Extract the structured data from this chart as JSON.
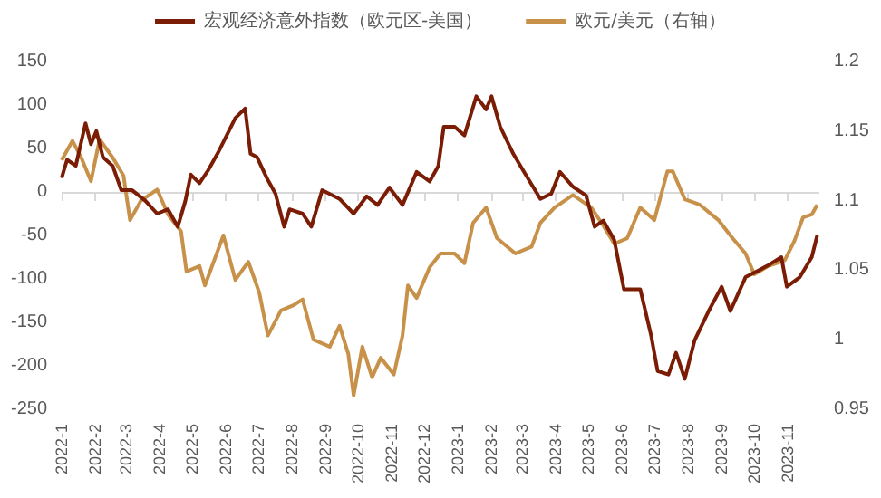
{
  "chart_data": {
    "type": "line",
    "legend": "top",
    "grid": false,
    "marker": "none",
    "line_style": "solid",
    "xlim": [
      "2022-01-01",
      "2023-11-30"
    ],
    "xticks": [
      {
        "value": "2022-01",
        "label": "2022-1"
      },
      {
        "value": "2022-02",
        "label": "2022-2"
      },
      {
        "value": "2022-03",
        "label": "2022-3"
      },
      {
        "value": "2022-04",
        "label": "2022-4"
      },
      {
        "value": "2022-05",
        "label": "2022-5"
      },
      {
        "value": "2022-06",
        "label": "2022-6"
      },
      {
        "value": "2022-07",
        "label": "2022-7"
      },
      {
        "value": "2022-08",
        "label": "2022-8"
      },
      {
        "value": "2022-09",
        "label": "2022-9"
      },
      {
        "value": "2022-10",
        "label": "2022-10"
      },
      {
        "value": "2022-11",
        "label": "2022-11"
      },
      {
        "value": "2022-12",
        "label": "2022-12"
      },
      {
        "value": "2023-01",
        "label": "2023-1"
      },
      {
        "value": "2023-02",
        "label": "2023-2"
      },
      {
        "value": "2023-03",
        "label": "2023-3"
      },
      {
        "value": "2023-04",
        "label": "2023-4"
      },
      {
        "value": "2023-05",
        "label": "2023-5"
      },
      {
        "value": "2023-06",
        "label": "2023-6"
      },
      {
        "value": "2023-07",
        "label": "2023-7"
      },
      {
        "value": "2023-08",
        "label": "2023-8"
      },
      {
        "value": "2023-09",
        "label": "2023-9"
      },
      {
        "value": "2023-10",
        "label": "2023-10"
      },
      {
        "value": "2023-11",
        "label": "2023-11"
      }
    ],
    "ylim": [
      -250,
      150
    ],
    "yticks": [
      -250,
      -200,
      -150,
      -100,
      -50,
      0,
      50,
      100,
      150
    ],
    "ref_lines": [
      {
        "axis": "y",
        "value": 0,
        "color": "#d9d9d9"
      }
    ],
    "y2lim": [
      0.95,
      1.2
    ],
    "y2ticks": [
      0.95,
      1,
      1.05,
      1.1,
      1.15,
      1.2
    ],
    "series": [
      {
        "name": "宏观经济意外指数（欧元区-美国）",
        "color": "#7b1c05",
        "x": [
          "2022-01-01",
          "2022-01-06",
          "2022-01-14",
          "2022-01-23",
          "2022-01-28",
          "2022-02-02",
          "2022-02-08",
          "2022-02-17",
          "2022-02-25",
          "2022-03-07",
          "2022-03-19",
          "2022-03-30",
          "2022-04-09",
          "2022-04-18",
          "2022-04-25",
          "2022-04-30",
          "2022-05-08",
          "2022-05-16",
          "2022-05-25",
          "2022-06-02",
          "2022-06-10",
          "2022-06-19",
          "2022-06-24",
          "2022-06-30",
          "2022-07-09",
          "2022-07-17",
          "2022-07-25",
          "2022-07-30",
          "2022-08-11",
          "2022-08-19",
          "2022-08-29",
          "2022-09-14",
          "2022-09-27",
          "2022-10-09",
          "2022-10-19",
          "2022-10-30",
          "2022-11-11",
          "2022-11-24",
          "2022-12-06",
          "2022-12-14",
          "2022-12-19",
          "2022-12-29",
          "2023-01-07",
          "2023-01-18",
          "2023-01-27",
          "2023-02-01",
          "2023-02-09",
          "2023-02-21",
          "2023-03-03",
          "2023-03-18",
          "2023-03-28",
          "2023-04-05",
          "2023-04-17",
          "2023-04-29",
          "2023-05-07",
          "2023-05-15",
          "2023-05-25",
          "2023-06-03",
          "2023-06-18",
          "2023-06-28",
          "2023-07-04",
          "2023-07-14",
          "2023-07-21",
          "2023-07-29",
          "2023-08-07",
          "2023-08-20",
          "2023-09-01",
          "2023-09-09",
          "2023-09-23",
          "2023-10-04",
          "2023-10-13",
          "2023-10-26",
          "2023-10-31",
          "2023-11-12",
          "2023-11-23",
          "2023-11-28"
        ],
        "values": [
          16,
          37,
          30,
          79,
          55,
          70,
          40,
          30,
          2,
          2,
          -10,
          -25,
          -20,
          -40,
          -10,
          20,
          10,
          25,
          45,
          65,
          85,
          96,
          44,
          40,
          16,
          -2,
          -40,
          -20,
          -25,
          -40,
          2,
          -8,
          -25,
          -5,
          -15,
          5,
          -15,
          23,
          12,
          30,
          75,
          75,
          65,
          110,
          95,
          110,
          75,
          44,
          23,
          -8,
          -2,
          23,
          6,
          -4,
          -40,
          -33,
          -55,
          -112,
          -112,
          -165,
          -206,
          -210,
          -185,
          -215,
          -171,
          -137,
          -109,
          -137,
          -98,
          -91,
          -85,
          -75,
          -109,
          -98,
          -75,
          -50
        ]
      },
      {
        "name": "欧元/美元（右轴）",
        "color": "#c8914a",
        "axis": "y2",
        "x": [
          "2022-01-01",
          "2022-01-11",
          "2022-01-19",
          "2022-01-28",
          "2022-02-05",
          "2022-02-17",
          "2022-02-27",
          "2022-03-05",
          "2022-03-15",
          "2022-03-30",
          "2022-04-09",
          "2022-04-21",
          "2022-04-26",
          "2022-05-08",
          "2022-05-13",
          "2022-05-30",
          "2022-06-10",
          "2022-06-22",
          "2022-07-02",
          "2022-07-10",
          "2022-07-22",
          "2022-08-03",
          "2022-08-11",
          "2022-08-21",
          "2022-09-05",
          "2022-09-14",
          "2022-09-22",
          "2022-09-27",
          "2022-10-05",
          "2022-10-14",
          "2022-10-22",
          "2022-11-03",
          "2022-11-11",
          "2022-11-16",
          "2022-11-24",
          "2022-12-06",
          "2022-12-16",
          "2022-12-29",
          "2023-01-07",
          "2023-01-15",
          "2023-01-27",
          "2023-02-06",
          "2023-02-23",
          "2023-03-10",
          "2023-03-18",
          "2023-03-31",
          "2023-04-17",
          "2023-05-04",
          "2023-05-15",
          "2023-05-25",
          "2023-06-06",
          "2023-06-18",
          "2023-07-01",
          "2023-07-13",
          "2023-07-18",
          "2023-07-29",
          "2023-08-12",
          "2023-08-29",
          "2023-09-11",
          "2023-09-23",
          "2023-10-01",
          "2023-10-14",
          "2023-10-29",
          "2023-11-07",
          "2023-11-15",
          "2023-11-23",
          "2023-11-28"
        ],
        "values": [
          1.129,
          1.143,
          1.131,
          1.114,
          1.144,
          1.131,
          1.118,
          1.086,
          1.1,
          1.108,
          1.09,
          1.078,
          1.049,
          1.053,
          1.039,
          1.075,
          1.043,
          1.056,
          1.034,
          1.003,
          1.021,
          1.025,
          1.029,
          1.0,
          0.995,
          1.01,
          0.99,
          0.96,
          0.995,
          0.973,
          0.987,
          0.975,
          1.003,
          1.039,
          1.03,
          1.052,
          1.062,
          1.062,
          1.055,
          1.084,
          1.095,
          1.073,
          1.062,
          1.067,
          1.084,
          1.095,
          1.104,
          1.095,
          1.082,
          1.069,
          1.073,
          1.095,
          1.086,
          1.121,
          1.121,
          1.101,
          1.097,
          1.086,
          1.073,
          1.062,
          1.047,
          1.053,
          1.057,
          1.071,
          1.088,
          1.09,
          1.097
        ]
      }
    ]
  }
}
